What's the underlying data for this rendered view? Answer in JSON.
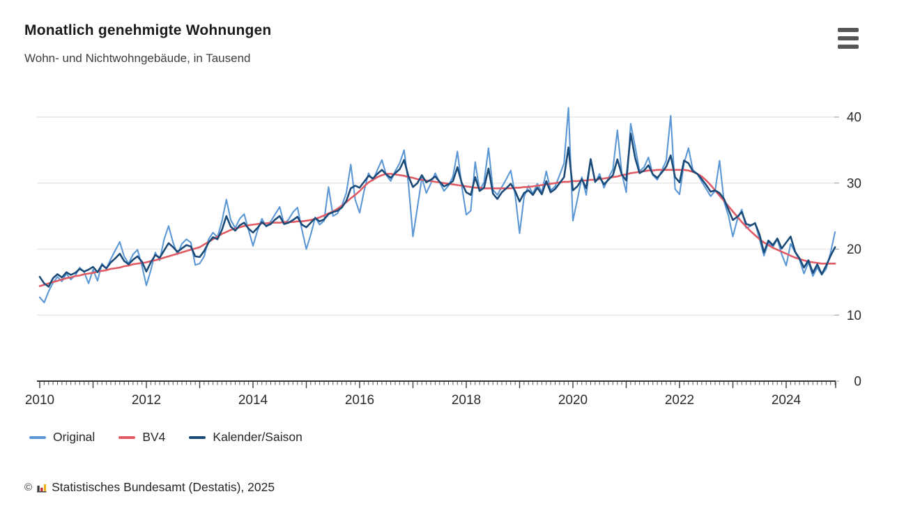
{
  "header": {
    "title": "Monatlich genehmigte Wohnungen",
    "subtitle": "Wohn- und Nichtwohngebäude, in Tausend"
  },
  "menu": {
    "icon": "hamburger-menu-icon",
    "tooltip": "Menü"
  },
  "footer": {
    "copyright": "©",
    "logo_icon": "destatis-bar-chart-logo",
    "logo_colors": [
      "#333333",
      "#cc2229",
      "#f0b019"
    ],
    "source": "Statistisches Bundesamt (Destatis), 2025"
  },
  "colors": {
    "axis_line": "#333333",
    "tick": "#555555",
    "gridline": "#e7e7e7",
    "axis_label": "#2b2b2b"
  },
  "chart_data": {
    "type": "line",
    "title": "Monatlich genehmigte Wohnungen",
    "subtitle": "Wohn- und Nichtwohngebäude, in Tausend",
    "x_unit": "month",
    "x_start_year": 2010,
    "x_end_year_inclusive": 2024,
    "xticks": [
      2010,
      2012,
      2014,
      2016,
      2018,
      2020,
      2022,
      2024
    ],
    "yticks": [
      0,
      10,
      20,
      30,
      40
    ],
    "ylim": [
      0,
      42
    ],
    "grid": "horizontal",
    "legend_position": "bottom-left",
    "series": [
      {
        "name": "Original",
        "color": "#5b97d5",
        "values": [
          12.7,
          11.9,
          13.6,
          14.9,
          15.8,
          15.1,
          16.3,
          15.4,
          16.0,
          17.2,
          16.5,
          14.8,
          16.9,
          15.2,
          17.8,
          17.0,
          18.5,
          19.8,
          21.1,
          18.9,
          17.8,
          19.2,
          19.9,
          17.5,
          14.5,
          16.8,
          19.5,
          18.3,
          21.5,
          23.5,
          21.0,
          19.2,
          20.8,
          21.5,
          21.0,
          17.6,
          17.8,
          18.9,
          21.5,
          22.5,
          21.8,
          24.2,
          27.5,
          24.4,
          23.2,
          24.6,
          25.3,
          22.9,
          20.5,
          22.8,
          24.6,
          23.4,
          24.2,
          25.3,
          26.4,
          23.8,
          24.5,
          25.6,
          26.3,
          23.0,
          20.0,
          22.2,
          24.8,
          23.7,
          24.3,
          29.4,
          25.0,
          25.4,
          26.6,
          28.5,
          32.8,
          27.5,
          25.5,
          28.8,
          31.5,
          30.4,
          32.0,
          33.5,
          31.2,
          30.3,
          31.8,
          33.0,
          35.0,
          29.8,
          21.9,
          26.3,
          30.8,
          28.5,
          29.9,
          31.5,
          30.1,
          28.8,
          29.6,
          31.0,
          34.8,
          29.5,
          25.2,
          25.8,
          33.2,
          28.9,
          30.1,
          35.3,
          29.0,
          28.2,
          29.4,
          30.6,
          31.9,
          28.3,
          22.4,
          27.9,
          29.6,
          28.4,
          29.9,
          28.6,
          31.8,
          28.9,
          29.5,
          31.2,
          33.0,
          41.4,
          24.3,
          27.5,
          30.9,
          28.2,
          33.7,
          30.1,
          31.4,
          29.3,
          30.8,
          32.1,
          38.0,
          31.5,
          28.6,
          39.0,
          35.5,
          31.8,
          32.4,
          33.9,
          31.2,
          30.5,
          31.9,
          33.4,
          40.2,
          29.1,
          28.3,
          33.0,
          35.3,
          32.0,
          31.4,
          30.2,
          29.1,
          28.0,
          28.8,
          33.4,
          27.2,
          25.1,
          21.9,
          24.5,
          26.0,
          23.2,
          23.5,
          24.0,
          21.5,
          19.0,
          21.0,
          20.3,
          21.5,
          19.2,
          17.5,
          20.8,
          19.5,
          18.4,
          16.3,
          18.0,
          15.9,
          17.2,
          16.1,
          17.0,
          19.5,
          22.6
        ]
      },
      {
        "name": "BV4",
        "color": "#e05a64",
        "values": [
          14.4,
          14.6,
          14.8,
          15.0,
          15.2,
          15.4,
          15.6,
          15.7,
          15.9,
          16.0,
          16.2,
          16.3,
          16.4,
          16.6,
          16.7,
          16.8,
          17.0,
          17.1,
          17.2,
          17.4,
          17.5,
          17.7,
          17.8,
          17.9,
          18.0,
          18.2,
          18.3,
          18.5,
          18.7,
          18.9,
          19.1,
          19.3,
          19.5,
          19.7,
          19.9,
          20.1,
          20.3,
          20.7,
          21.1,
          21.5,
          21.9,
          22.3,
          22.6,
          22.9,
          23.1,
          23.3,
          23.5,
          23.6,
          23.7,
          23.8,
          23.9,
          23.9,
          24.0,
          24.0,
          24.0,
          24.1,
          24.1,
          24.1,
          24.2,
          24.2,
          24.3,
          24.4,
          24.6,
          24.8,
          25.1,
          25.4,
          25.7,
          26.1,
          26.6,
          27.1,
          27.7,
          28.2,
          28.8,
          29.5,
          30.1,
          30.5,
          30.9,
          31.2,
          31.4,
          31.4,
          31.3,
          31.2,
          31.1,
          30.9,
          30.8,
          30.6,
          30.5,
          30.4,
          30.3,
          30.2,
          30.1,
          30.0,
          29.9,
          29.8,
          29.7,
          29.6,
          29.5,
          29.4,
          29.3,
          29.3,
          29.2,
          29.2,
          29.2,
          29.2,
          29.2,
          29.2,
          29.2,
          29.3,
          29.3,
          29.4,
          29.4,
          29.5,
          29.6,
          29.7,
          29.8,
          29.9,
          30.0,
          30.1,
          30.2,
          30.2,
          30.3,
          30.3,
          30.4,
          30.4,
          30.5,
          30.5,
          30.6,
          30.7,
          30.8,
          30.9,
          31.0,
          31.2,
          31.3,
          31.5,
          31.6,
          31.7,
          31.8,
          31.9,
          31.9,
          32.0,
          32.0,
          32.0,
          32.0,
          32.0,
          32.0,
          32.0,
          31.9,
          31.7,
          31.4,
          31.0,
          30.4,
          29.7,
          28.9,
          28.1,
          27.3,
          26.5,
          25.7,
          24.9,
          24.1,
          23.4,
          22.7,
          22.1,
          21.5,
          21.0,
          20.6,
          20.2,
          19.9,
          19.6,
          19.3,
          19.0,
          18.7,
          18.5,
          18.3,
          18.1,
          18.0,
          17.9,
          17.8,
          17.8,
          17.8,
          17.8
        ]
      },
      {
        "name": "Kalender/Saison",
        "color": "#1a4a78",
        "values": [
          15.8,
          14.8,
          14.3,
          15.6,
          16.2,
          15.7,
          16.5,
          16.1,
          16.4,
          17.0,
          16.6,
          16.9,
          17.3,
          16.5,
          17.6,
          17.1,
          18.0,
          18.6,
          19.3,
          18.2,
          17.7,
          18.4,
          18.9,
          18.1,
          16.6,
          18.0,
          19.1,
          18.7,
          19.8,
          20.9,
          20.3,
          19.6,
          20.1,
          20.6,
          20.4,
          18.9,
          18.8,
          19.7,
          21.0,
          21.8,
          21.5,
          22.9,
          25.0,
          23.4,
          22.8,
          23.6,
          24.0,
          23.1,
          22.5,
          23.2,
          24.1,
          23.5,
          23.8,
          24.5,
          25.0,
          23.8,
          24.0,
          24.4,
          24.9,
          23.7,
          23.3,
          24.0,
          24.7,
          24.2,
          24.5,
          25.3,
          25.6,
          25.8,
          26.3,
          27.3,
          29.2,
          29.6,
          29.3,
          30.2,
          31.1,
          30.7,
          31.4,
          32.0,
          31.3,
          30.8,
          31.5,
          32.1,
          33.5,
          31.0,
          29.4,
          30.0,
          31.2,
          30.1,
          30.5,
          31.0,
          30.2,
          29.5,
          29.8,
          30.3,
          32.4,
          30.0,
          28.6,
          28.2,
          30.9,
          28.8,
          29.3,
          32.2,
          28.4,
          27.6,
          28.6,
          29.2,
          29.9,
          28.8,
          27.2,
          28.5,
          28.9,
          28.2,
          29.3,
          28.3,
          30.3,
          28.6,
          29.1,
          30.0,
          30.9,
          35.4,
          28.9,
          29.5,
          30.6,
          29.2,
          33.6,
          30.2,
          30.9,
          29.8,
          30.5,
          31.2,
          33.6,
          31.3,
          30.4,
          37.5,
          33.8,
          31.5,
          31.9,
          32.7,
          31.3,
          30.8,
          31.6,
          32.5,
          34.2,
          30.9,
          30.1,
          33.4,
          33.0,
          31.8,
          31.4,
          30.6,
          29.7,
          28.7,
          28.9,
          28.5,
          27.6,
          26.0,
          24.4,
          24.9,
          25.6,
          23.8,
          23.6,
          23.9,
          22.2,
          19.5,
          21.3,
          20.6,
          21.6,
          20.1,
          21.0,
          21.9,
          19.6,
          18.6,
          17.2,
          18.3,
          16.4,
          17.7,
          16.2,
          17.5,
          19.0,
          20.3
        ]
      }
    ]
  }
}
